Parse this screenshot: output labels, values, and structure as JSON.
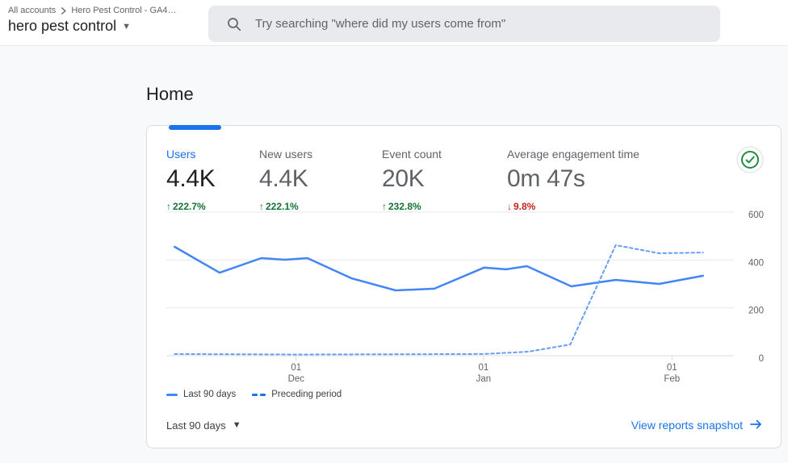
{
  "header": {
    "breadcrumb": {
      "account": "All accounts",
      "property": "Hero Pest Control - GA4…"
    },
    "property_title": "hero pest control",
    "search": {
      "placeholder": "Try searching \"where did my users come from\""
    }
  },
  "page": {
    "title": "Home"
  },
  "card": {
    "metrics": [
      {
        "label": "Users",
        "value": "4.4K",
        "arrow": "↑",
        "delta": "222.7%",
        "direction": "up",
        "active": true
      },
      {
        "label": "New users",
        "value": "4.4K",
        "arrow": "↑",
        "delta": "222.1%",
        "direction": "up",
        "active": false
      },
      {
        "label": "Event count",
        "value": "20K",
        "arrow": "↑",
        "delta": "232.8%",
        "direction": "up",
        "active": false
      },
      {
        "label": "Average engagement time",
        "value": "0m 47s",
        "arrow": "↓",
        "delta": "9.8%",
        "direction": "down",
        "active": false
      }
    ],
    "status_badge": "no-data-issues-check",
    "date_range": "Last 90 days",
    "snapshot_link": "View reports snapshot"
  },
  "chart_data": {
    "type": "line",
    "ylim": [
      0,
      600
    ],
    "yticks": [
      0,
      200,
      400,
      600
    ],
    "grid": "horizontal-only",
    "legend_position": "bottom-left",
    "xticks": [
      {
        "day": "01",
        "month": "Dec",
        "f": 0.235
      },
      {
        "day": "01",
        "month": "Jan",
        "f": 0.585
      },
      {
        "day": "01",
        "month": "Feb",
        "f": 0.937
      }
    ],
    "series": [
      {
        "name": "Last 90 days",
        "style": "solid",
        "points": [
          [
            0.008,
            455
          ],
          [
            0.092,
            347
          ],
          [
            0.17,
            408
          ],
          [
            0.214,
            401
          ],
          [
            0.256,
            408
          ],
          [
            0.338,
            324
          ],
          [
            0.421,
            273
          ],
          [
            0.493,
            280
          ],
          [
            0.586,
            368
          ],
          [
            0.627,
            361
          ],
          [
            0.666,
            374
          ],
          [
            0.749,
            290
          ],
          [
            0.832,
            317
          ],
          [
            0.913,
            300
          ],
          [
            0.995,
            334
          ]
        ]
      },
      {
        "name": "Preceding period",
        "style": "dashed",
        "points": [
          [
            0.008,
            7
          ],
          [
            0.233,
            5
          ],
          [
            0.585,
            7
          ],
          [
            0.669,
            17
          ],
          [
            0.747,
            47
          ],
          [
            0.832,
            462
          ],
          [
            0.913,
            428
          ],
          [
            0.995,
            431
          ]
        ]
      }
    ]
  },
  "colors": {
    "accent": "#1a73e8",
    "line_solid": "#4285f4",
    "line_dashed": "#669df6",
    "positive": "#137333",
    "negative": "#c5221f",
    "grid": "#e8eaed",
    "axis": "#dadce0",
    "axis_text": "#5f6368"
  }
}
